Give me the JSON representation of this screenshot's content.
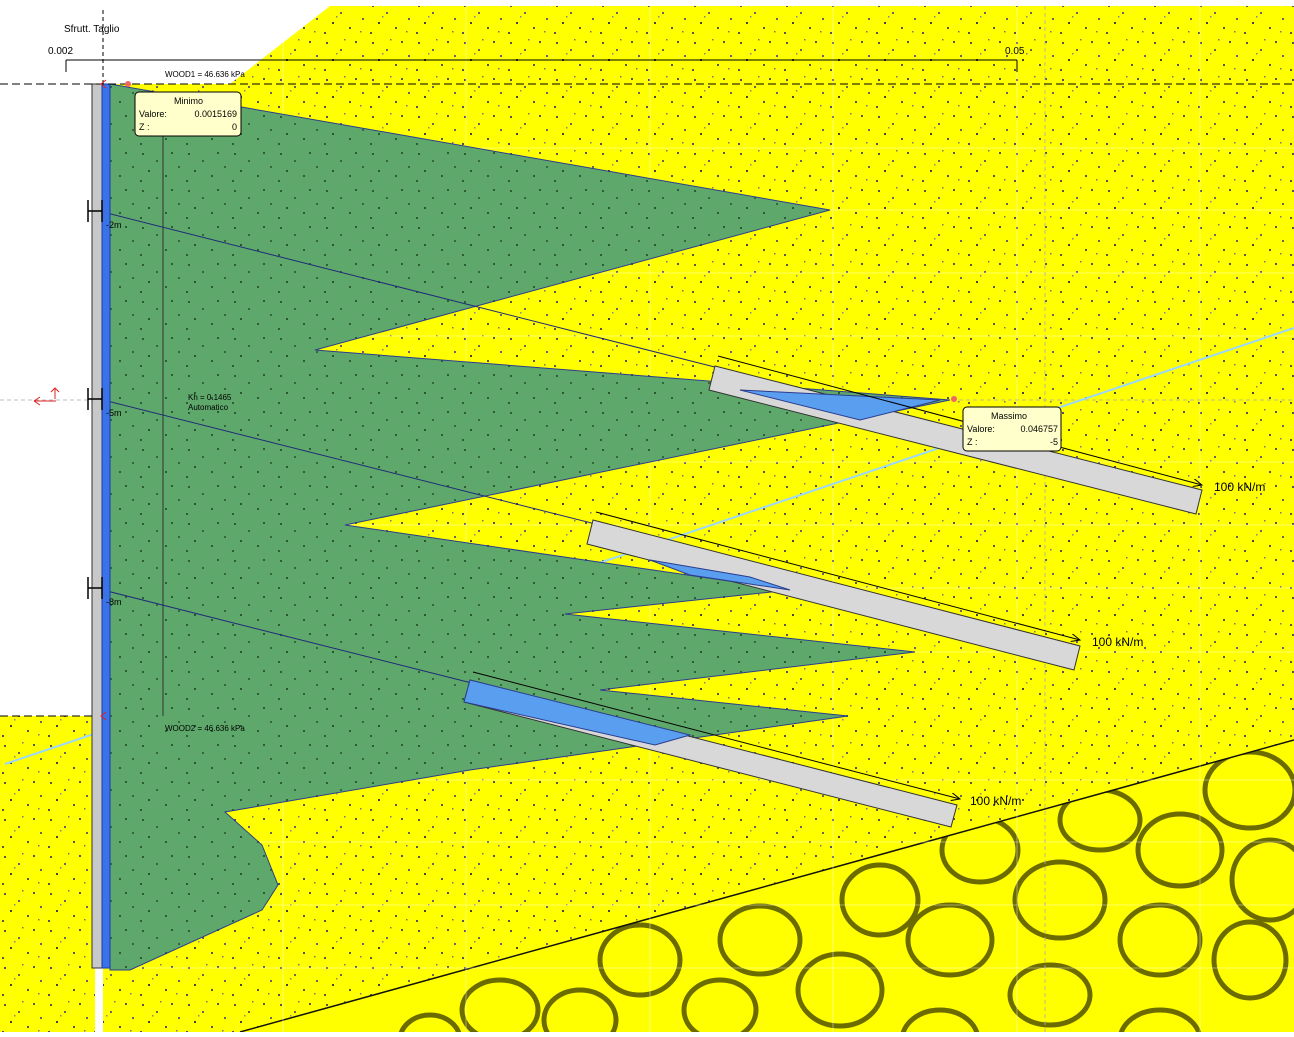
{
  "header": {
    "title": "Sfrutt. Taglio",
    "scale_min": "0.002",
    "scale_max": "0.05"
  },
  "loads": {
    "top": "WOOD1 = 46.636 kPa",
    "bottom": "WOOD2 = 46.636 kPa"
  },
  "depth_labels": [
    "-2m",
    "-5m",
    "-8m"
  ],
  "seismic": {
    "line1": "Kh = 0.1465",
    "line2": "Automatico"
  },
  "minimum_box": {
    "title": "Minimo",
    "value_label": "Valore:",
    "value": "0.0015169",
    "z_label": "Z :",
    "z": "0"
  },
  "maximum_box": {
    "title": "Massimo",
    "value_label": "Valore:",
    "value": "0.046757",
    "z_label": "Z :",
    "z": "-5"
  },
  "anchor_forces": [
    "100 kN/m",
    "100 kN/m",
    "100 kN/m"
  ],
  "colors": {
    "soil": "#ffff00",
    "diagram_fill": "#5fa86b",
    "wall": "#3a73e8",
    "anchor_bulb": "#d8d8d8",
    "bulb_highlight": "#5a9ef0",
    "water_line": "#9ad7ff",
    "gravel_outline": "#6b6b00"
  }
}
